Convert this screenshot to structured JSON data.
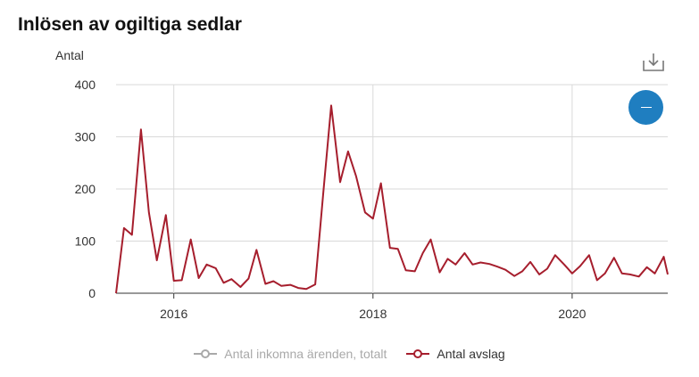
{
  "header": {
    "title": "Inlösen av ogiltiga sedlar"
  },
  "chart_data": {
    "type": "line",
    "title": "Inlösen av ogiltiga sedlar",
    "ylabel": "Antal",
    "xlabel": "",
    "ylim": [
      0,
      400
    ],
    "y_ticks": [
      0,
      100,
      200,
      300,
      400
    ],
    "x_ticks": [
      {
        "label": "2016",
        "value": 2016.0
      },
      {
        "label": "2018",
        "value": 2018.0
      },
      {
        "label": "2020",
        "value": 2020.0
      }
    ],
    "xlim": [
      2015.42,
      2020.96
    ],
    "grid": true,
    "legend_position": "bottom",
    "series": [
      {
        "name": "Antal inkomna ärenden, totalt",
        "visible": false,
        "color": "#a9a9a9",
        "x": [],
        "values": []
      },
      {
        "name": "Antal avslag",
        "visible": true,
        "color": "#a61e2d",
        "x": [
          2015.42,
          2015.5,
          2015.58,
          2015.67,
          2015.75,
          2015.83,
          2015.92,
          2016.0,
          2016.08,
          2016.17,
          2016.25,
          2016.33,
          2016.42,
          2016.5,
          2016.58,
          2016.67,
          2016.75,
          2016.83,
          2016.92,
          2017.0,
          2017.08,
          2017.17,
          2017.25,
          2017.33,
          2017.42,
          2017.5,
          2017.58,
          2017.67,
          2017.75,
          2017.83,
          2017.92,
          2018.0,
          2018.08,
          2018.17,
          2018.25,
          2018.33,
          2018.42,
          2018.5,
          2018.58,
          2018.67,
          2018.75,
          2018.83,
          2018.92,
          2019.0,
          2019.08,
          2019.17,
          2019.25,
          2019.33,
          2019.42,
          2019.5,
          2019.58,
          2019.67,
          2019.75,
          2019.83,
          2019.92,
          2020.0,
          2020.08,
          2020.17,
          2020.25,
          2020.33,
          2020.42,
          2020.5,
          2020.58,
          2020.67,
          2020.75,
          2020.83,
          2020.92,
          2020.96
        ],
        "values": [
          0,
          125,
          112,
          314,
          155,
          63,
          150,
          24,
          25,
          103,
          29,
          55,
          48,
          20,
          27,
          12,
          28,
          83,
          18,
          23,
          14,
          16,
          10,
          8,
          17,
          190,
          360,
          213,
          272,
          225,
          155,
          143,
          211,
          87,
          85,
          44,
          42,
          77,
          103,
          40,
          66,
          55,
          77,
          55,
          59,
          56,
          51,
          45,
          33,
          42,
          60,
          36,
          47,
          73,
          55,
          38,
          52,
          73,
          25,
          38,
          68,
          38,
          36,
          32,
          50,
          38,
          70,
          36
        ]
      }
    ]
  },
  "icons": {
    "download": "download-icon",
    "toggle": "minus-icon"
  }
}
